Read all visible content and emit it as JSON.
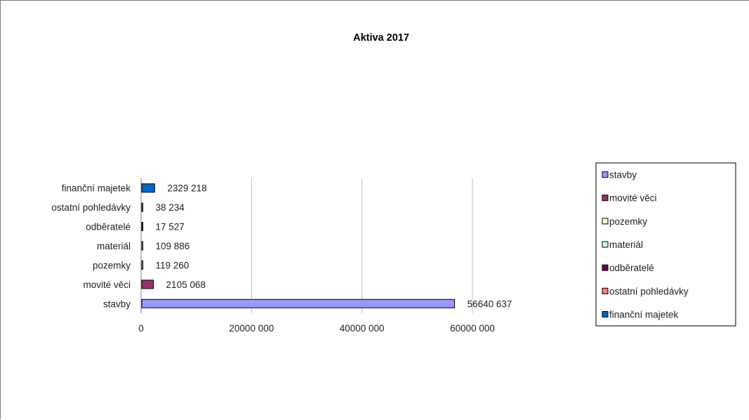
{
  "chart_data": {
    "type": "bar",
    "orientation": "horizontal",
    "title": "Aktiva 2017",
    "xlabel": "",
    "ylabel": "",
    "xlim": [
      0,
      60000000
    ],
    "x_ticks": [
      0,
      20000000,
      40000000,
      60000000
    ],
    "x_tick_labels": [
      "0",
      "20000 000",
      "40000 000",
      "60000 000"
    ],
    "gridlines": true,
    "legend_position": "right",
    "categories": [
      "stavby",
      "movité věci",
      "pozemky",
      "materiál",
      "odběratelé",
      "ostatní pohledávky",
      "finanční majetek"
    ],
    "values": [
      56640637,
      2105068,
      119260,
      109886,
      17527,
      38234,
      2329218
    ],
    "data_labels": [
      "56640 637",
      "2105 068",
      "119 260",
      "109 886",
      "17 527",
      "38 234",
      "2329 218"
    ],
    "colors": [
      "#9999ff",
      "#993366",
      "#ffffcc",
      "#ccffff",
      "#660066",
      "#ff8080",
      "#0066cc"
    ],
    "legend": [
      "stavby",
      "movité věci",
      "pozemky",
      "materiál",
      "odběratelé",
      "ostatní pohledávky",
      "finanční majetek"
    ]
  }
}
